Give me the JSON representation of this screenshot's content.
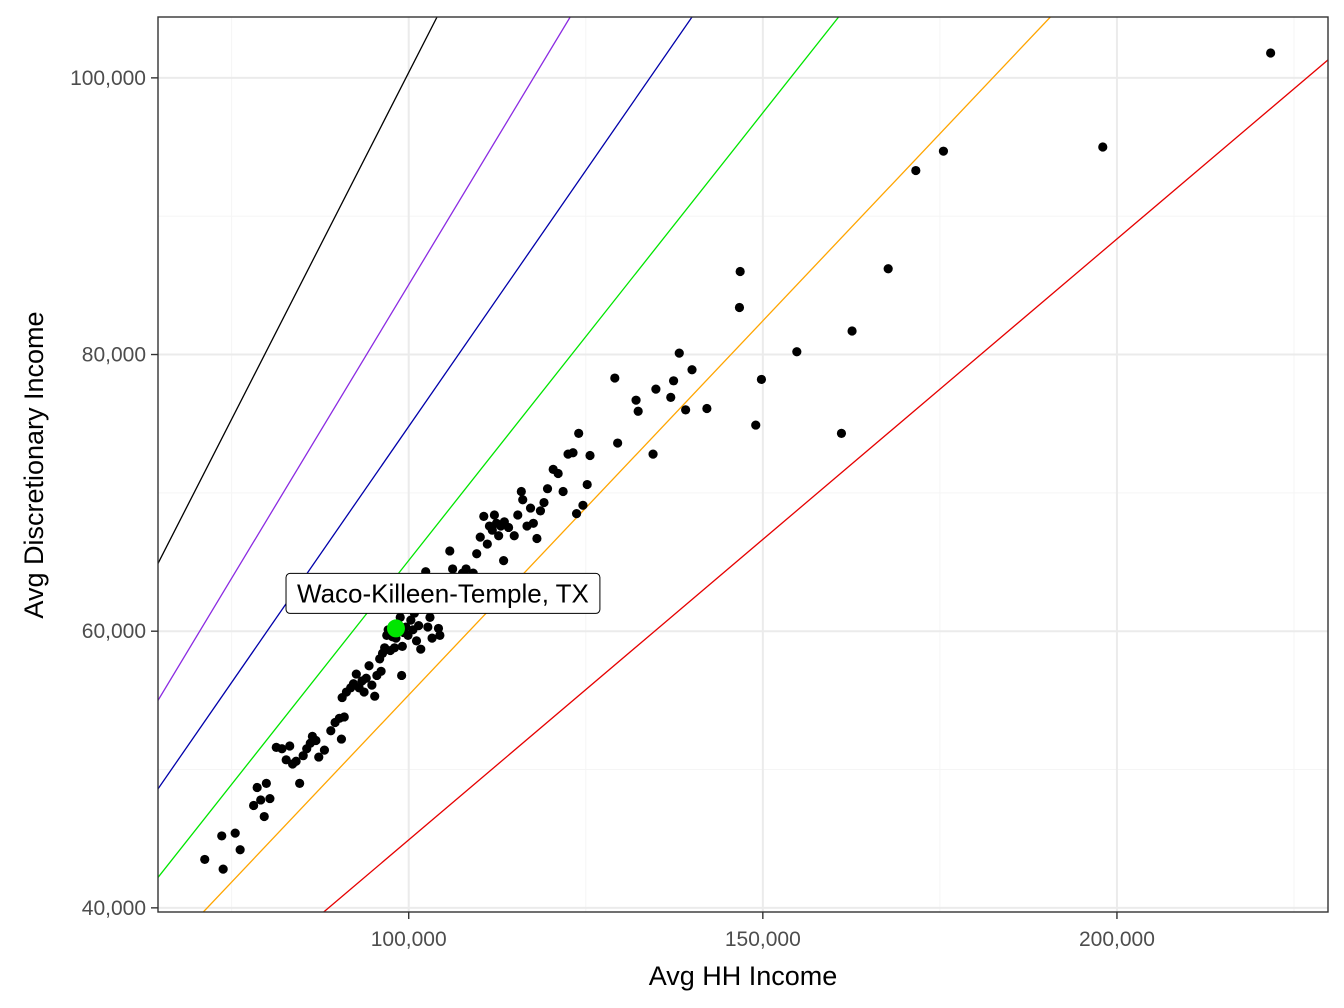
{
  "chart_data": {
    "type": "scatter",
    "title": "",
    "xlabel": "Avg HH Income",
    "ylabel": "Avg Discretionary Income",
    "xlim": [
      64600,
      229800
    ],
    "ylim": [
      39700,
      104400
    ],
    "x_ticks": [
      100000,
      150000,
      200000
    ],
    "x_tick_labels": [
      "100,000",
      "150,000",
      "200,000"
    ],
    "y_ticks": [
      40000,
      60000,
      80000,
      100000
    ],
    "y_tick_labels": [
      "40,000",
      "60,000",
      "80,000",
      "100,000"
    ],
    "grid": true,
    "legend": "none",
    "colors": {
      "points": "#000000",
      "highlight": "#00e600",
      "grid_major": "#ebebeb",
      "grid_minor": "#f5f5f5",
      "panel_border": "#333333"
    },
    "reference_lines": [
      {
        "color": "#000000",
        "points": [
          [
            64600,
            64900
          ],
          [
            104000,
            104400
          ]
        ]
      },
      {
        "color": "#8b2be2",
        "points": [
          [
            64600,
            55000
          ],
          [
            122800,
            104400
          ]
        ]
      },
      {
        "color": "#0000aa",
        "points": [
          [
            64600,
            48600
          ],
          [
            140000,
            104400
          ]
        ]
      },
      {
        "color": "#00e600",
        "points": [
          [
            64600,
            42200
          ],
          [
            160700,
            104400
          ]
        ]
      },
      {
        "color": "#ffa500",
        "points": [
          [
            71000,
            39700
          ],
          [
            190600,
            104400
          ]
        ]
      },
      {
        "color": "#e60000",
        "points": [
          [
            88000,
            39700
          ],
          [
            229800,
            101300
          ]
        ]
      }
    ],
    "points": [
      [
        71200,
        43500
      ],
      [
        73800,
        42800
      ],
      [
        73600,
        45200
      ],
      [
        75500,
        45400
      ],
      [
        76200,
        44200
      ],
      [
        78100,
        47400
      ],
      [
        78600,
        48700
      ],
      [
        79100,
        47800
      ],
      [
        79900,
        49000
      ],
      [
        80400,
        47900
      ],
      [
        79600,
        46600
      ],
      [
        81300,
        51600
      ],
      [
        82100,
        51500
      ],
      [
        82700,
        50700
      ],
      [
        83200,
        51700
      ],
      [
        83600,
        50400
      ],
      [
        84100,
        50600
      ],
      [
        84600,
        49000
      ],
      [
        85100,
        51000
      ],
      [
        85600,
        51500
      ],
      [
        86100,
        51900
      ],
      [
        86400,
        52400
      ],
      [
        86900,
        52100
      ],
      [
        87300,
        50900
      ],
      [
        88100,
        51400
      ],
      [
        89000,
        52800
      ],
      [
        89600,
        53400
      ],
      [
        90200,
        53700
      ],
      [
        90500,
        52200
      ],
      [
        90900,
        53800
      ],
      [
        90600,
        55200
      ],
      [
        91200,
        55600
      ],
      [
        91800,
        55900
      ],
      [
        92200,
        56200
      ],
      [
        92600,
        56900
      ],
      [
        93000,
        55900
      ],
      [
        93400,
        56400
      ],
      [
        93700,
        55600
      ],
      [
        94000,
        56600
      ],
      [
        94400,
        57500
      ],
      [
        94800,
        56100
      ],
      [
        95200,
        55300
      ],
      [
        95500,
        56800
      ],
      [
        95900,
        58000
      ],
      [
        96100,
        57100
      ],
      [
        96300,
        58400
      ],
      [
        96600,
        58800
      ],
      [
        96900,
        59700
      ],
      [
        97100,
        60100
      ],
      [
        97400,
        58600
      ],
      [
        97700,
        59600
      ],
      [
        98000,
        58800
      ],
      [
        98200,
        59500
      ],
      [
        98500,
        60300
      ],
      [
        98800,
        61000
      ],
      [
        99100,
        58900
      ],
      [
        99300,
        59900
      ],
      [
        99600,
        60300
      ],
      [
        99000,
        56800
      ],
      [
        99900,
        59700
      ],
      [
        100300,
        60800
      ],
      [
        100600,
        60100
      ],
      [
        100800,
        61300
      ],
      [
        101100,
        59300
      ],
      [
        101400,
        60400
      ],
      [
        101700,
        58700
      ],
      [
        102100,
        62100
      ],
      [
        102400,
        64300
      ],
      [
        102700,
        60300
      ],
      [
        103000,
        61000
      ],
      [
        103300,
        59500
      ],
      [
        103600,
        62700
      ],
      [
        103900,
        61900
      ],
      [
        104200,
        60200
      ],
      [
        104400,
        59700
      ],
      [
        105100,
        63800
      ],
      [
        105800,
        65800
      ],
      [
        106200,
        64500
      ],
      [
        106700,
        63900
      ],
      [
        107600,
        64200
      ],
      [
        108100,
        64500
      ],
      [
        108600,
        63900
      ],
      [
        109100,
        64200
      ],
      [
        109600,
        65600
      ],
      [
        110100,
        66800
      ],
      [
        110600,
        68300
      ],
      [
        111100,
        66300
      ],
      [
        111400,
        67600
      ],
      [
        111800,
        67300
      ],
      [
        112100,
        68400
      ],
      [
        112400,
        67800
      ],
      [
        112700,
        66900
      ],
      [
        113000,
        67600
      ],
      [
        113500,
        67900
      ],
      [
        114100,
        67500
      ],
      [
        113400,
        65100
      ],
      [
        114900,
        66900
      ],
      [
        115400,
        68400
      ],
      [
        115900,
        70100
      ],
      [
        116100,
        69500
      ],
      [
        116700,
        67600
      ],
      [
        117200,
        68900
      ],
      [
        117600,
        67800
      ],
      [
        118100,
        66700
      ],
      [
        118600,
        68700
      ],
      [
        119100,
        69300
      ],
      [
        119600,
        70300
      ],
      [
        120400,
        71700
      ],
      [
        121100,
        71400
      ],
      [
        121800,
        70100
      ],
      [
        122500,
        72800
      ],
      [
        123200,
        72900
      ],
      [
        124000,
        74300
      ],
      [
        123700,
        68500
      ],
      [
        124600,
        69100
      ],
      [
        125200,
        70600
      ],
      [
        125600,
        72700
      ],
      [
        129100,
        78300
      ],
      [
        129500,
        73600
      ],
      [
        132100,
        76700
      ],
      [
        132400,
        75900
      ],
      [
        134500,
        72800
      ],
      [
        134900,
        77500
      ],
      [
        137400,
        78100
      ],
      [
        137000,
        76900
      ],
      [
        138200,
        80100
      ],
      [
        139100,
        76000
      ],
      [
        140000,
        78900
      ],
      [
        142100,
        76100
      ],
      [
        146700,
        83400
      ],
      [
        146800,
        86000
      ],
      [
        149000,
        74900
      ],
      [
        149800,
        78200
      ],
      [
        154800,
        80200
      ],
      [
        161100,
        74300
      ],
      [
        162600,
        81700
      ],
      [
        167700,
        86200
      ],
      [
        171600,
        93300
      ],
      [
        175500,
        94700
      ],
      [
        198000,
        95000
      ],
      [
        221700,
        101800
      ]
    ],
    "highlight": {
      "x": 98200,
      "y": 60200,
      "label": "Waco-Killeen-Temple, TX"
    }
  }
}
